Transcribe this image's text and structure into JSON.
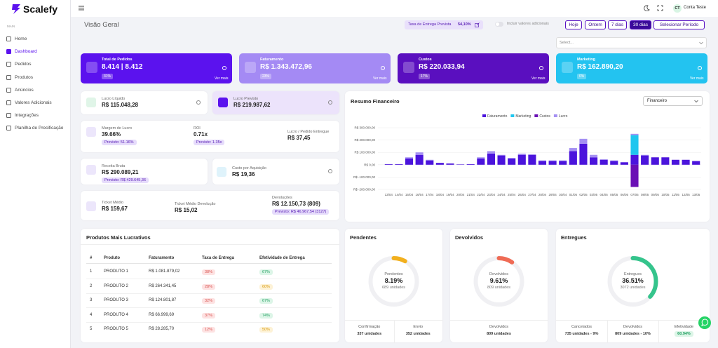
{
  "brand": "Scalefy",
  "sidebar": {
    "section": "MAIN",
    "items": [
      "Home",
      "Dashboard",
      "Pedidos",
      "Produtos",
      "Anúncios",
      "Valores Adicionais",
      "Integrações",
      "Planilha de Precificação"
    ],
    "active": 1
  },
  "user": {
    "initials": "CT",
    "name": "Conta Teste"
  },
  "header": {
    "title": "Visão Geral",
    "delivery_rate_label": "Taxa de Entrega Prevista",
    "delivery_rate": "54,10%",
    "toggle_label": "Incluir valores adicionais",
    "periods": [
      "Hoje",
      "Ontem",
      "7 dias",
      "30 dias"
    ],
    "active_period": 3,
    "custom_period": "Selecionar Período",
    "select_placeholder": "Select..."
  },
  "kpis": [
    {
      "title": "Total de Pedidos",
      "value": "8.414 | 8.412",
      "change": "31%",
      "link": "Ver mais",
      "color": "#5b12ee"
    },
    {
      "title": "Faturamento",
      "value": "R$ 1.343.472,96",
      "change": "23%",
      "link": "Ver mais",
      "color": "#a48af4"
    },
    {
      "title": "Custos",
      "value": "R$ 220.033,94",
      "change": "17%",
      "link": "Ver mais",
      "color": "#5a0fbf"
    },
    {
      "title": "Marketing",
      "value": "R$ 162.890,20",
      "change": "0%",
      "link": "Ver mais",
      "color": "#23c3f0"
    }
  ],
  "metrics": {
    "lucro_liquido": {
      "label": "Lucro Líquido",
      "value": "R$ 115.048,28"
    },
    "lucro_previsto": {
      "label": "Lucro Previsto",
      "value": "R$ 219.987,62"
    },
    "margem": {
      "label": "Margem de Lucro",
      "value": "39.66%",
      "forecast": "Previsto: 51.16%"
    },
    "roi": {
      "label": "ROI",
      "value": "0.71x",
      "forecast": "Previsto: 1.35x"
    },
    "lucro_pedido": {
      "label": "Lucro / Pedido Entregue",
      "value": "R$ 37,45"
    },
    "receita": {
      "label": "Receita Bruta",
      "value": "R$ 290.089,21",
      "forecast": "Previsto: R$ 429.645,36"
    },
    "cpa": {
      "label": "Custo por Aquisição",
      "value": "R$ 19,36"
    },
    "ticket": {
      "label": "Ticket Médio",
      "value": "R$ 159,67"
    },
    "ticket_dev": {
      "label": "Ticket Médio Devolução",
      "value": "R$ 15,02"
    },
    "devolucoes": {
      "label": "Devoluções",
      "value": "R$ 12.150,73 (809)",
      "forecast": "Previsto: R$ 46.967,54 (3127)"
    }
  },
  "chart_data": {
    "type": "bar",
    "stacked": true,
    "title": "Resumo Financeiro",
    "selector": "Financeiro",
    "categories": [
      "13/04",
      "14/04",
      "15/04",
      "16/04",
      "17/04",
      "18/04",
      "19/04",
      "20/04",
      "21/04",
      "22/04",
      "23/04",
      "24/04",
      "25/04",
      "26/04",
      "27/04",
      "28/04",
      "29/04",
      "30/04",
      "01/05",
      "02/05",
      "03/05",
      "04/05",
      "05/05",
      "06/05",
      "07/05",
      "08/05",
      "09/05",
      "10/05",
      "11/05",
      "12/05",
      "13/05"
    ],
    "series": [
      {
        "name": "Faturamento",
        "color": "#4b14dc",
        "values": [
          5000,
          5000,
          50000,
          80000,
          35000,
          15000,
          10000,
          3000,
          5000,
          50000,
          90000,
          75000,
          50000,
          80000,
          80000,
          30000,
          30000,
          30000,
          110000,
          170000,
          60000,
          40000,
          30000,
          20000,
          80000,
          75000,
          60000,
          60000,
          40000,
          40000,
          30000
        ]
      },
      {
        "name": "Marketing",
        "color": "#1fc6ef",
        "values": [
          0,
          0,
          0,
          0,
          0,
          0,
          0,
          0,
          0,
          0,
          0,
          0,
          0,
          0,
          0,
          0,
          0,
          0,
          0,
          0,
          0,
          0,
          0,
          0,
          160000,
          0,
          0,
          0,
          0,
          0,
          0
        ]
      },
      {
        "name": "Custos",
        "color": "#6a0fb5",
        "values": [
          0,
          0,
          0,
          0,
          0,
          0,
          0,
          0,
          0,
          0,
          0,
          0,
          0,
          0,
          0,
          0,
          0,
          0,
          0,
          0,
          0,
          0,
          0,
          0,
          -180000,
          0,
          0,
          0,
          0,
          0,
          0
        ]
      },
      {
        "name": "Lucro",
        "color": "#a590f3",
        "values": [
          0,
          0,
          10000,
          20000,
          5000,
          0,
          0,
          0,
          0,
          10000,
          20000,
          5000,
          5000,
          10000,
          5000,
          5000,
          5000,
          5000,
          25000,
          40000,
          20000,
          5000,
          5000,
          0,
          10000,
          5000,
          0,
          0,
          0,
          0,
          0
        ]
      }
    ],
    "ylim": [
      -200000,
      300000
    ],
    "yticks": [
      {
        "value": 300000,
        "label": "R$ 300.000,00"
      },
      {
        "value": 200000,
        "label": "R$ 200.000,00"
      },
      {
        "value": 100000,
        "label": "R$ 100.000,00"
      },
      {
        "value": 0,
        "label": "R$ 0,00"
      },
      {
        "value": -100000,
        "label": "R$ -100.000,00"
      },
      {
        "value": -200000,
        "label": "R$ -200.000,00"
      }
    ],
    "grid": true
  },
  "table": {
    "title": "Produtos Mais Lucrativos",
    "columns": [
      "#",
      "Produto",
      "Faturamento",
      "Taxa de Entrega",
      "Efetividade de Entrega"
    ],
    "rows": [
      [
        "1",
        "PRODUTO 1",
        "R$ 1.081.879,02",
        "38%",
        "67%"
      ],
      [
        "2",
        "PRODUTO 2",
        "R$ 264.341,45",
        "28%",
        "60%"
      ],
      [
        "3",
        "PRODUTO 3",
        "R$ 124.801,87",
        "32%",
        "67%"
      ],
      [
        "4",
        "PRODUTO 4",
        "R$ 66.999,69",
        "37%",
        "74%"
      ],
      [
        "5",
        "PRODUTO 5",
        "R$ 28.285,70",
        "12%",
        "50%"
      ]
    ]
  },
  "status": [
    {
      "title": "Pendentes",
      "center_label": "Pendentes",
      "value": 8.19,
      "value_label": "8.19%",
      "units": "689 unidades",
      "color": "#f2b01e",
      "footer": [
        {
          "label": "Confirmação",
          "value": "337 unidades"
        },
        {
          "label": "Envio",
          "value": "352 unidades"
        }
      ]
    },
    {
      "title": "Devolvidos",
      "center_label": "Devolvidos",
      "value": 9.61,
      "value_label": "9.61%",
      "units": "809 unidades",
      "color": "#ef6b55",
      "footer": [
        {
          "label": "Devolvidos",
          "value": "809 unidades"
        }
      ]
    },
    {
      "title": "Entregues",
      "center_label": "Entregues",
      "value": 36.51,
      "value_label": "36.51%",
      "units": "3072 unidades",
      "color": "#35c48c",
      "footer": [
        {
          "label": "Cancelados",
          "value": "735 unidades - 9%"
        },
        {
          "label": "Devolvidos",
          "value": "809 unidades - 10%"
        },
        {
          "label": "Efetividade",
          "value": "60.94%"
        }
      ]
    }
  ]
}
